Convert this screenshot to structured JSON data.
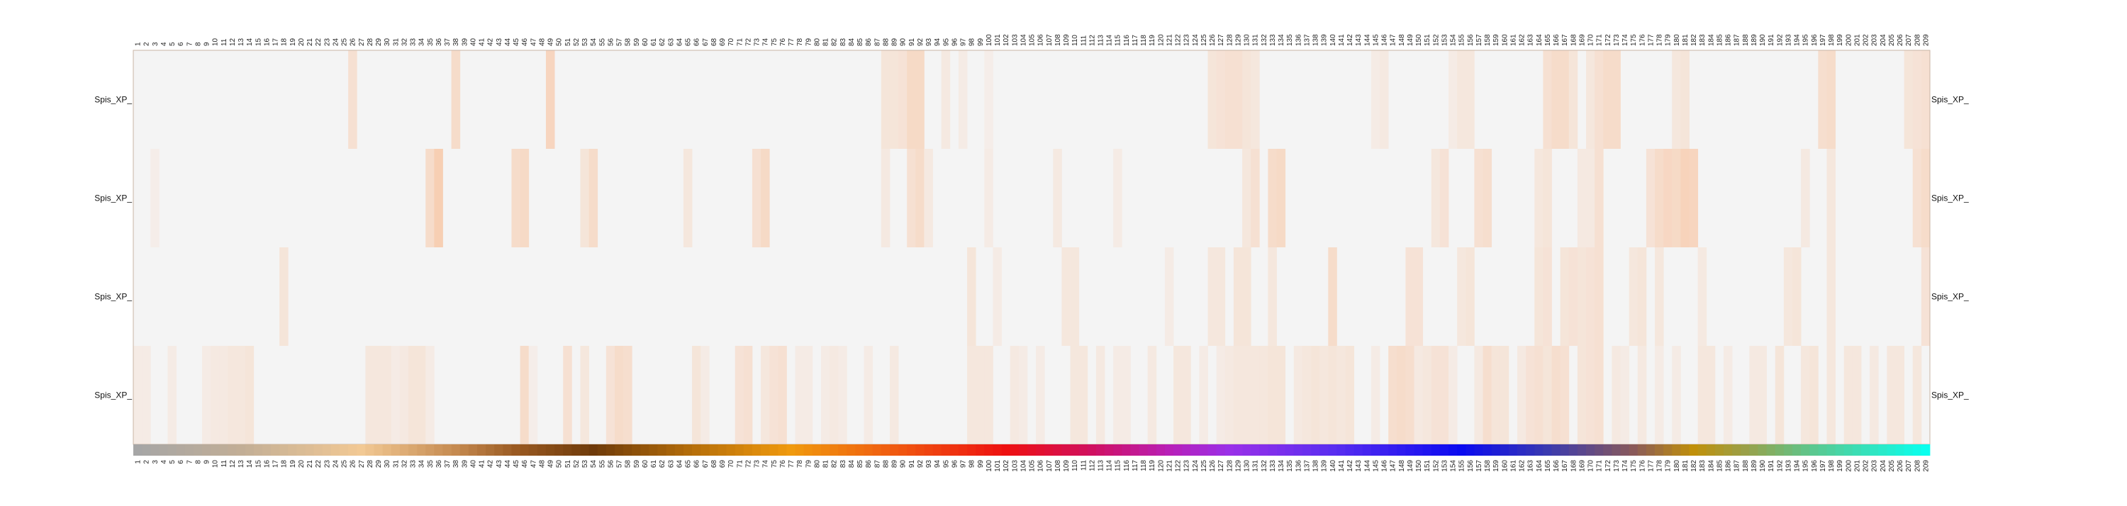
{
  "chart_data": {
    "type": "heatmap",
    "title": "",
    "xlabel": "",
    "ylabel": "",
    "n_columns": 209,
    "column_labels": [
      "1",
      "2",
      "3",
      "4",
      "5",
      "6",
      "7",
      "8",
      "9",
      "10",
      "11",
      "12",
      "13",
      "14",
      "15",
      "16",
      "17",
      "18",
      "19",
      "20",
      "21",
      "22",
      "23",
      "24",
      "25",
      "26",
      "27",
      "28",
      "29",
      "30",
      "31",
      "32",
      "33",
      "34",
      "35",
      "36",
      "37",
      "38",
      "39",
      "40",
      "41",
      "42",
      "43",
      "44",
      "45",
      "46",
      "47",
      "48",
      "49",
      "50",
      "51",
      "52",
      "53",
      "54",
      "55",
      "56",
      "57",
      "58",
      "59",
      "60",
      "61",
      "62",
      "63",
      "64",
      "65",
      "66",
      "67",
      "68",
      "69",
      "70",
      "71",
      "72",
      "73",
      "74",
      "75",
      "76",
      "77",
      "78",
      "79",
      "80",
      "81",
      "82",
      "83",
      "84",
      "85",
      "86",
      "87",
      "88",
      "89",
      "90",
      "91",
      "92",
      "93",
      "94",
      "95",
      "96",
      "97",
      "98",
      "99",
      "100",
      "101",
      "102",
      "103",
      "104",
      "105",
      "106",
      "107",
      "108",
      "109",
      "110",
      "111",
      "112",
      "113",
      "114",
      "115",
      "116",
      "117",
      "118",
      "119",
      "120",
      "121",
      "122",
      "123",
      "124",
      "125",
      "126",
      "127",
      "128",
      "129",
      "130",
      "131",
      "132",
      "133",
      "134",
      "135",
      "136",
      "137",
      "138",
      "139",
      "140",
      "141",
      "142",
      "143",
      "144",
      "145",
      "146",
      "147",
      "148",
      "149",
      "150",
      "151",
      "152",
      "153",
      "154",
      "155",
      "156",
      "157",
      "158",
      "159",
      "160",
      "161",
      "162",
      "163",
      "164",
      "165",
      "166",
      "167",
      "168",
      "169",
      "170",
      "171",
      "172",
      "173",
      "174",
      "175",
      "176",
      "177",
      "178",
      "179",
      "180",
      "181",
      "182",
      "183",
      "184",
      "185",
      "186",
      "187",
      "188",
      "189",
      "190",
      "191",
      "192",
      "193",
      "194",
      "195",
      "196",
      "197",
      "198",
      "199",
      "200",
      "201",
      "202",
      "203",
      "204",
      "205",
      "206",
      "207",
      "208",
      "209"
    ],
    "row_labels": [
      "Spis_XP_",
      "Spis_XP_",
      "Spis_XP_",
      "Spis_XP_"
    ],
    "value_range": [
      0,
      1
    ],
    "cell_color_low": "#f4f4f4",
    "cell_color_high": "#f8c8a8",
    "rows": [
      {
        "highlights": {
          "26": 0.45,
          "38": 0.55,
          "49": 0.7,
          "88": 0.35,
          "89": 0.35,
          "90": 0.4,
          "91": 0.6,
          "92": 0.6,
          "95": 0.25,
          "97": 0.2,
          "100": 0.15,
          "126": 0.35,
          "127": 0.4,
          "128": 0.45,
          "129": 0.45,
          "130": 0.35,
          "131": 0.3,
          "145": 0.2,
          "146": 0.25,
          "154": 0.2,
          "155": 0.3,
          "156": 0.3,
          "165": 0.45,
          "166": 0.55,
          "167": 0.55,
          "168": 0.35,
          "170": 0.3,
          "171": 0.45,
          "172": 0.55,
          "173": 0.55,
          "180": 0.3,
          "181": 0.35,
          "197": 0.5,
          "198": 0.55,
          "207": 0.35,
          "208": 0.4,
          "209": 0.45
        }
      },
      {
        "highlights": {
          "3": 0.15,
          "35": 0.55,
          "36": 0.85,
          "45": 0.55,
          "46": 0.6,
          "53": 0.35,
          "54": 0.55,
          "65": 0.3,
          "73": 0.45,
          "74": 0.6,
          "88": 0.25,
          "91": 0.45,
          "92": 0.55,
          "93": 0.25,
          "100": 0.2,
          "108": 0.25,
          "115": 0.2,
          "130": 0.3,
          "131": 0.45,
          "133": 0.55,
          "134": 0.6,
          "152": 0.3,
          "153": 0.4,
          "157": 0.45,
          "158": 0.5,
          "164": 0.3,
          "165": 0.35,
          "169": 0.25,
          "170": 0.25,
          "171": 0.45,
          "177": 0.4,
          "178": 0.55,
          "179": 0.65,
          "180": 0.6,
          "181": 0.75,
          "182": 0.7,
          "195": 0.25,
          "198": 0.3,
          "208": 0.45,
          "209": 0.55
        }
      },
      {
        "highlights": {
          "18": 0.35,
          "98": 0.35,
          "101": 0.2,
          "109": 0.3,
          "110": 0.3,
          "121": 0.2,
          "126": 0.3,
          "127": 0.3,
          "129": 0.35,
          "130": 0.35,
          "133": 0.3,
          "140": 0.55,
          "149": 0.4,
          "150": 0.4,
          "155": 0.3,
          "156": 0.35,
          "164": 0.35,
          "165": 0.4,
          "167": 0.35,
          "168": 0.4,
          "169": 0.35,
          "170": 0.4,
          "171": 0.45,
          "175": 0.3,
          "176": 0.35,
          "178": 0.3,
          "183": 0.25,
          "193": 0.3,
          "194": 0.35,
          "198": 0.3,
          "209": 0.4
        }
      },
      {
        "highlights": {
          "1": 0.2,
          "2": 0.2,
          "5": 0.2,
          "9": 0.2,
          "10": 0.25,
          "11": 0.25,
          "12": 0.3,
          "13": 0.3,
          "14": 0.35,
          "28": 0.3,
          "29": 0.3,
          "30": 0.3,
          "31": 0.2,
          "32": 0.25,
          "33": 0.35,
          "34": 0.35,
          "35": 0.2,
          "46": 0.55,
          "47": 0.15,
          "51": 0.45,
          "53": 0.3,
          "56": 0.4,
          "57": 0.55,
          "58": 0.5,
          "66": 0.35,
          "67": 0.2,
          "71": 0.4,
          "72": 0.45,
          "74": 0.3,
          "75": 0.4,
          "76": 0.45,
          "78": 0.2,
          "79": 0.2,
          "81": 0.2,
          "82": 0.25,
          "83": 0.2,
          "86": 0.2,
          "89": 0.25,
          "98": 0.3,
          "99": 0.3,
          "100": 0.3,
          "103": 0.25,
          "104": 0.2,
          "106": 0.2,
          "110": 0.3,
          "111": 0.3,
          "113": 0.25,
          "115": 0.2,
          "116": 0.2,
          "119": 0.25,
          "122": 0.3,
          "123": 0.3,
          "125": 0.2,
          "127": 0.2,
          "128": 0.25,
          "129": 0.3,
          "130": 0.3,
          "131": 0.3,
          "132": 0.3,
          "133": 0.35,
          "134": 0.35,
          "136": 0.25,
          "137": 0.3,
          "138": 0.35,
          "139": 0.3,
          "140": 0.35,
          "141": 0.3,
          "142": 0.35,
          "145": 0.2,
          "147": 0.5,
          "148": 0.55,
          "149": 0.5,
          "150": 0.25,
          "151": 0.3,
          "152": 0.4,
          "153": 0.4,
          "154": 0.2,
          "157": 0.25,
          "158": 0.5,
          "159": 0.35,
          "160": 0.35,
          "162": 0.25,
          "163": 0.4,
          "164": 0.45,
          "165": 0.35,
          "166": 0.5,
          "167": 0.45,
          "169": 0.35,
          "170": 0.4,
          "171": 0.45,
          "173": 0.25,
          "174": 0.2,
          "176": 0.25,
          "178": 0.2,
          "180": 0.2,
          "183": 0.3,
          "184": 0.3,
          "186": 0.2,
          "189": 0.25,
          "190": 0.25,
          "192": 0.35,
          "195": 0.3,
          "196": 0.35,
          "198": 0.3,
          "200": 0.3,
          "201": 0.3,
          "203": 0.25,
          "205": 0.3,
          "206": 0.3,
          "208": 0.3
        }
      }
    ],
    "color_bar_stops": [
      {
        "col": 1,
        "color": "#a6a6a6"
      },
      {
        "col": 13,
        "color": "#c2ae96"
      },
      {
        "col": 27,
        "color": "#f2c994"
      },
      {
        "col": 38,
        "color": "#c58a50"
      },
      {
        "col": 45,
        "color": "#9a5a22"
      },
      {
        "col": 54,
        "color": "#6e3a0a"
      },
      {
        "col": 66,
        "color": "#b8700a"
      },
      {
        "col": 77,
        "color": "#f09a0e"
      },
      {
        "col": 88,
        "color": "#f06010"
      },
      {
        "col": 102,
        "color": "#ee1010"
      },
      {
        "col": 112,
        "color": "#d01060"
      },
      {
        "col": 121,
        "color": "#b820b8"
      },
      {
        "col": 128,
        "color": "#9a30e8"
      },
      {
        "col": 140,
        "color": "#5a2ef0"
      },
      {
        "col": 155,
        "color": "#0a0af0"
      },
      {
        "col": 165,
        "color": "#3a3ab0"
      },
      {
        "col": 175,
        "color": "#8a5a5a"
      },
      {
        "col": 182,
        "color": "#c0900a"
      },
      {
        "col": 188,
        "color": "#9aa048"
      },
      {
        "col": 196,
        "color": "#5ac890"
      },
      {
        "col": 209,
        "color": "#0affee"
      }
    ]
  }
}
